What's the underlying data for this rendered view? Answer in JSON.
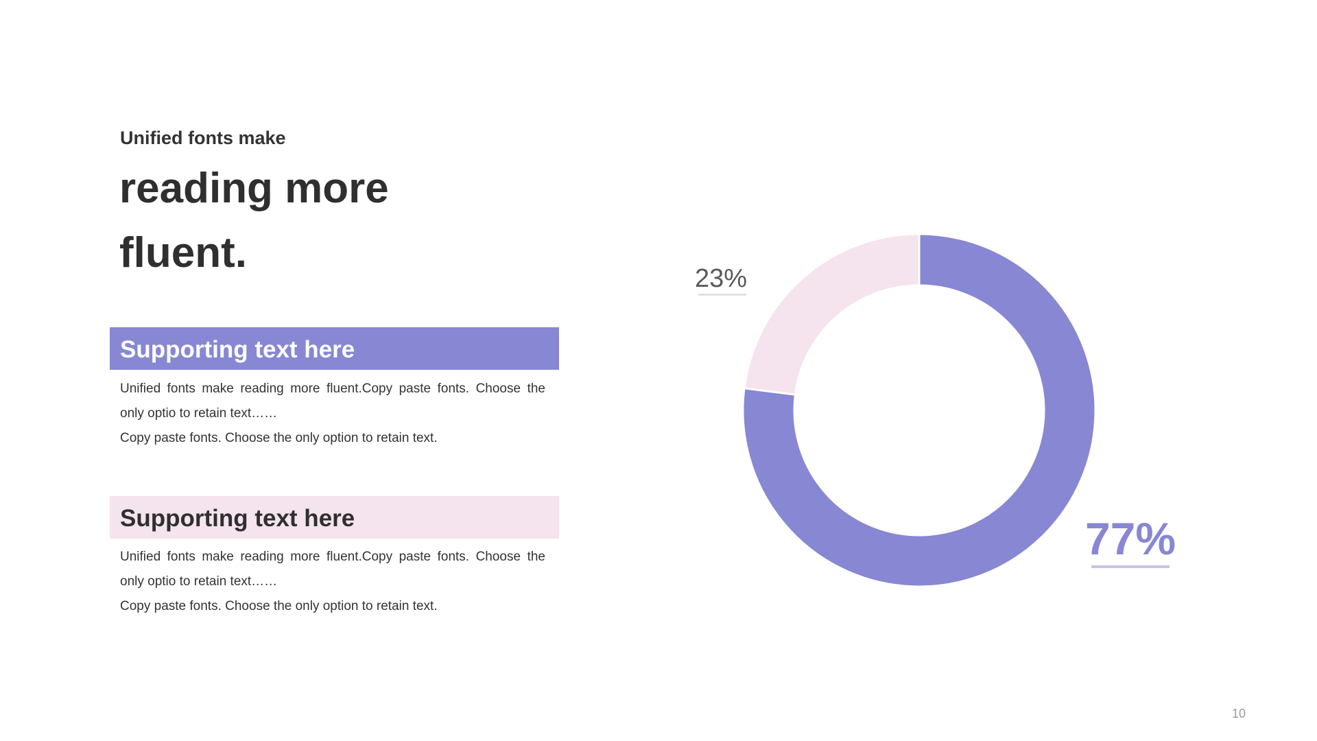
{
  "title": {
    "kicker": "Unified fonts make",
    "line1": "reading more",
    "line2": "fluent."
  },
  "sections": [
    {
      "heading": "Supporting text here",
      "paragraph1": "Unified  fonts make reading more fluent.Copy paste fonts. Choose the only optio to retain text……",
      "paragraph2": "Copy paste  fonts. Choose the only option to retain text."
    },
    {
      "heading": "Supporting text here",
      "paragraph1": "Unified  fonts make reading more fluent.Copy paste fonts. Choose the only optio to retain text……",
      "paragraph2": "Copy paste  fonts. Choose the only option to retain text."
    }
  ],
  "colors": {
    "accent": "#8787d4",
    "accent_light": "#f5e3ee",
    "text": "#333333"
  },
  "chart_data": {
    "type": "pie",
    "donut": true,
    "categories": [
      "23%",
      "77%"
    ],
    "values": [
      23,
      77
    ],
    "colors": [
      "#f5e3ee",
      "#8787d4"
    ],
    "data_labels": [
      "23%",
      "77%"
    ]
  },
  "page_number": "10"
}
